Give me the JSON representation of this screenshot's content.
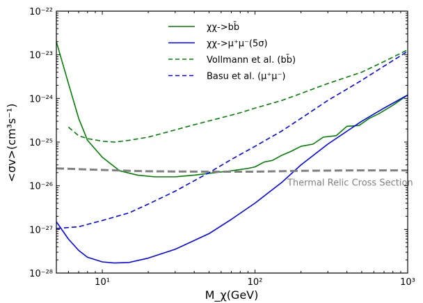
{
  "chart_data": {
    "type": "line",
    "x_scale": "log",
    "y_scale": "log",
    "xlim": [
      5,
      1000
    ],
    "ylim": [
      1e-28,
      1e-22
    ],
    "xlabel": "M_χ(GeV)",
    "ylabel": "<σv>(cm³s⁻¹)",
    "x_ticks": [
      {
        "value": 10,
        "label": "10¹"
      },
      {
        "value": 100,
        "label": "10²"
      },
      {
        "value": 1000,
        "label": "10³"
      }
    ],
    "y_ticks": [
      {
        "value": 1e-28,
        "label": "10⁻²⁸"
      },
      {
        "value": 1e-27,
        "label": "10⁻²⁷"
      },
      {
        "value": 1e-26,
        "label": "10⁻²⁶"
      },
      {
        "value": 1e-25,
        "label": "10⁻²⁵"
      },
      {
        "value": 1e-24,
        "label": "10⁻²⁴"
      },
      {
        "value": 1e-23,
        "label": "10⁻²³"
      },
      {
        "value": 1e-22,
        "label": "10⁻²²"
      }
    ],
    "legend_position": "top-center",
    "annotation": {
      "text": "Thermal Relic Cross Section",
      "color": "#808080",
      "x": 420,
      "y": 2.1e-26
    },
    "series": [
      {
        "name": "χχ->bb̄",
        "color": "#008000",
        "dash": "solid",
        "in_legend": true,
        "x": [
          5,
          6,
          7,
          8,
          10,
          13,
          17,
          22,
          30,
          40,
          55,
          70,
          90,
          100,
          115,
          130,
          150,
          170,
          200,
          240,
          280,
          340,
          400,
          480,
          560,
          650,
          800,
          1000
        ],
        "y": [
          2e-23,
          2.2e-24,
          3.5e-25,
          1.1e-25,
          4.5e-26,
          2.2e-26,
          1.75e-26,
          1.6e-26,
          1.6e-26,
          1.75e-26,
          2e-26,
          2.2e-26,
          2.5e-26,
          2.7e-26,
          3.5e-26,
          3.8e-26,
          5e-26,
          6e-26,
          8e-26,
          9e-26,
          1.3e-25,
          1.4e-25,
          2.3e-25,
          2.4e-25,
          3.5e-25,
          4.5e-25,
          7e-25,
          1.2e-24
        ]
      },
      {
        "name": "χχ->μ⁺μ⁻(5σ)",
        "color": "#0000ff",
        "dash": "solid",
        "in_legend": true,
        "x": [
          5,
          6,
          7,
          8,
          10,
          12,
          15,
          20,
          30,
          50,
          70,
          100,
          150,
          200,
          300,
          500,
          700,
          1000
        ],
        "y": [
          1.5e-27,
          6e-28,
          3.3e-28,
          2.3e-28,
          1.8e-28,
          1.7e-28,
          1.75e-28,
          2.2e-28,
          3.5e-28,
          8e-28,
          1.7e-27,
          4e-27,
          1.2e-26,
          3e-26,
          9e-26,
          3e-25,
          6e-25,
          1.2e-24
        ]
      },
      {
        "name": "Vollmann et al. (bb̄)",
        "color": "#008000",
        "dash": "dashed",
        "in_legend": true,
        "x": [
          6,
          7,
          8,
          10,
          12,
          15,
          20,
          30,
          40,
          60,
          80,
          100,
          150,
          200,
          300,
          500,
          700,
          1000
        ],
        "y": [
          2.2e-25,
          1.4e-25,
          1.2e-25,
          1.05e-25,
          1e-25,
          1.1e-25,
          1.3e-25,
          1.9e-25,
          2.5e-25,
          3.6e-25,
          4.7e-25,
          6e-25,
          9e-25,
          1.3e-24,
          2.2e-24,
          4e-24,
          7e-24,
          1.3e-23
        ]
      },
      {
        "name": "Basu et al. (μ⁺μ⁻)",
        "color": "#0000ff",
        "dash": "dashed",
        "in_legend": true,
        "x": [
          5,
          7,
          10,
          15,
          20,
          30,
          50,
          70,
          100,
          150,
          200,
          300,
          500,
          700,
          1000
        ],
        "y": [
          1.05e-27,
          1.15e-27,
          1.6e-27,
          2.4e-27,
          3.8e-27,
          7.5e-27,
          2e-26,
          4e-26,
          8e-26,
          1.8e-25,
          3.5e-25,
          9e-25,
          2.6e-24,
          5.5e-24,
          1.2e-23
        ]
      },
      {
        "name": "Thermal Relic Cross Section",
        "color": "#808080",
        "dash": "dashed-thick",
        "in_legend": false,
        "x": [
          5,
          7,
          10,
          15,
          20,
          30,
          50,
          100,
          200,
          500,
          1000
        ],
        "y": [
          2.5e-26,
          2.4e-26,
          2.3e-26,
          2.2e-26,
          2.15e-26,
          2.12e-26,
          2.1e-26,
          2.1e-26,
          2.2e-26,
          2.25e-26,
          2.25e-26
        ]
      }
    ]
  }
}
